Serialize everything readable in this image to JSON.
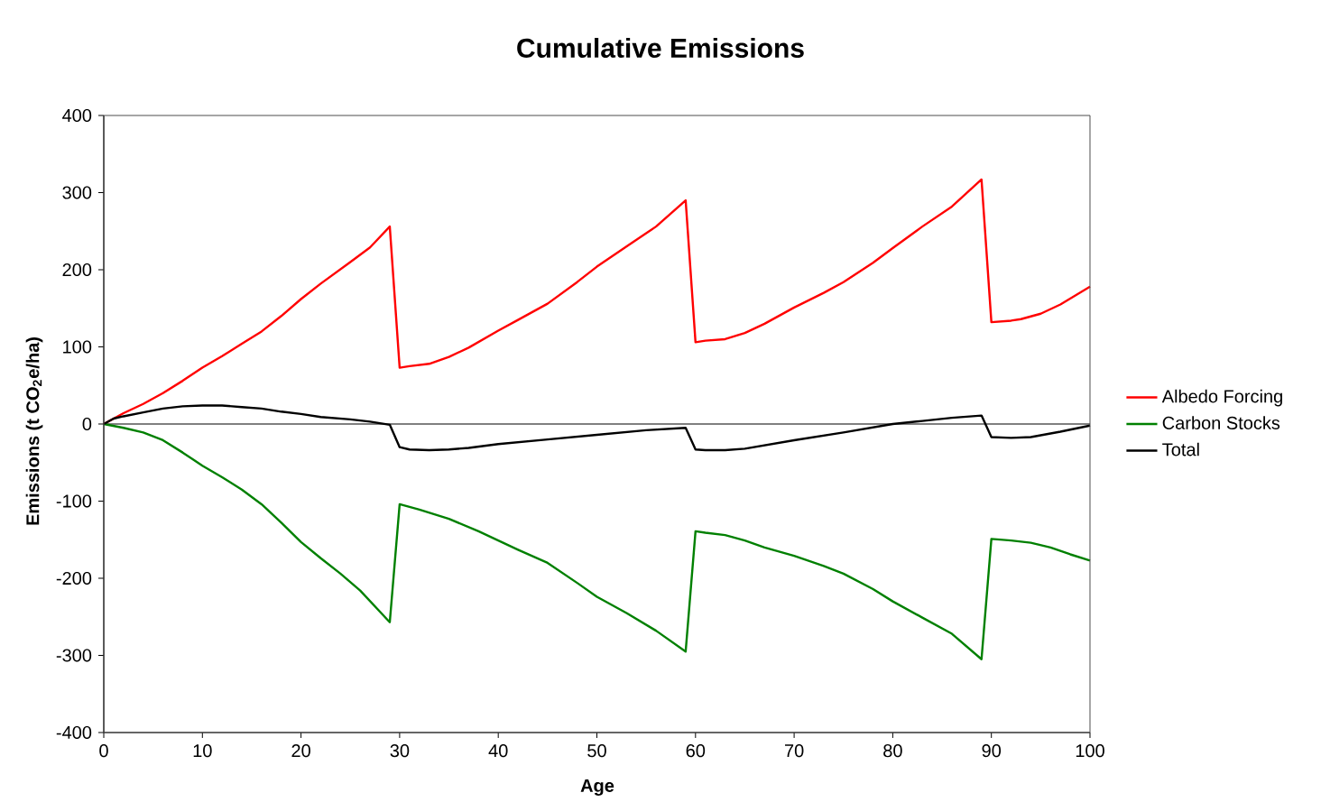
{
  "chart_data": {
    "type": "line",
    "title": "Cumulative Emissions",
    "xlabel": "Age",
    "ylabel": "Emissions (t CO$_{2}$e/ha)",
    "xlim": [
      0,
      100
    ],
    "xticks": [
      0,
      10,
      20,
      30,
      40,
      50,
      60,
      70,
      80,
      90,
      100
    ],
    "ylim": [
      -400,
      400
    ],
    "yticks": [
      -400,
      -300,
      -200,
      -100,
      0,
      100,
      200,
      300,
      400
    ],
    "grid": false,
    "ref_lines": [
      {
        "axis": "y",
        "value": 0,
        "color": "#000000",
        "line_style": "solid"
      }
    ],
    "legend": "right",
    "marker": "none",
    "line_style": "solid",
    "series": [
      {
        "name": "Albedo Forcing",
        "color": "#ff0000",
        "x": [
          0,
          2,
          4,
          6,
          8,
          10,
          12,
          14,
          16,
          18,
          20,
          22,
          25,
          27,
          29,
          30,
          31,
          33,
          35,
          37,
          40,
          42,
          45,
          48,
          50,
          53,
          56,
          59,
          60,
          61,
          63,
          65,
          67,
          70,
          73,
          75,
          78,
          80,
          83,
          86,
          89,
          90,
          92,
          93,
          95,
          97,
          100
        ],
        "values": [
          0,
          14,
          26,
          40,
          56,
          73,
          88,
          104,
          120,
          140,
          162,
          182,
          210,
          229,
          256,
          73,
          75,
          78,
          87,
          99,
          121,
          135,
          156,
          184,
          204,
          230,
          256,
          290,
          106,
          108,
          110,
          118,
          130,
          151,
          170,
          184,
          209,
          228,
          256,
          282,
          317,
          132,
          134,
          136,
          143,
          155,
          178
        ]
      },
      {
        "name": "Carbon Stocks",
        "color": "#008000",
        "x": [
          0,
          2,
          4,
          6,
          8,
          10,
          12,
          14,
          16,
          18,
          20,
          22,
          24,
          26,
          29,
          30,
          32,
          35,
          38,
          40,
          42,
          45,
          48,
          50,
          53,
          56,
          59,
          60,
          61,
          63,
          65,
          67,
          70,
          73,
          75,
          78,
          80,
          83,
          86,
          89,
          90,
          92,
          94,
          96,
          98,
          100
        ],
        "values": [
          0,
          -5,
          -11,
          -21,
          -37,
          -54,
          -69,
          -85,
          -104,
          -128,
          -153,
          -174,
          -194,
          -216,
          -257,
          -104,
          -111,
          -123,
          -139,
          -151,
          -163,
          -180,
          -206,
          -224,
          -245,
          -268,
          -295,
          -139,
          -141,
          -144,
          -151,
          -160,
          -171,
          -184,
          -194,
          -214,
          -230,
          -251,
          -272,
          -305,
          -149,
          -151,
          -154,
          -160,
          -169,
          -177
        ]
      },
      {
        "name": "Total",
        "color": "#000000",
        "x": [
          0,
          1,
          2,
          4,
          6,
          8,
          10,
          12,
          14,
          16,
          18,
          20,
          22,
          25,
          27,
          29,
          30,
          31,
          33,
          35,
          37,
          40,
          45,
          50,
          55,
          59,
          60,
          61,
          63,
          65,
          70,
          75,
          80,
          83,
          86,
          89,
          90,
          92,
          94,
          97,
          100
        ],
        "values": [
          0,
          7,
          10,
          15,
          20,
          23,
          24,
          24,
          22,
          20,
          16,
          13,
          9,
          6,
          3,
          -1,
          -30,
          -33,
          -34,
          -33,
          -31,
          -26,
          -20,
          -14,
          -8,
          -5,
          -33,
          -34,
          -34,
          -32,
          -21,
          -11,
          0,
          4,
          8,
          11,
          -17,
          -18,
          -17,
          -10,
          -2
        ]
      }
    ]
  }
}
